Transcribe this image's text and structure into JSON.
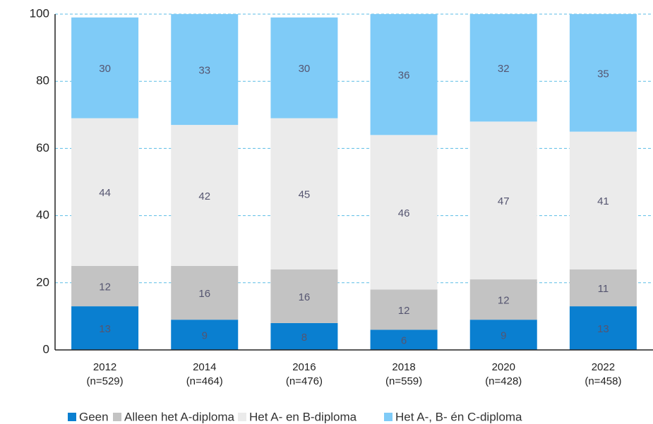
{
  "chart_data": {
    "type": "stacked_bar",
    "categories": [
      "2012",
      "2014",
      "2016",
      "2018",
      "2020",
      "2022"
    ],
    "category_sublabels": [
      "(n=529)",
      "(n=464)",
      "(n=476)",
      "(n=559)",
      "(n=428)",
      "(n=458)"
    ],
    "series": [
      {
        "name": "Geen",
        "color": "#0a7fd0",
        "values": [
          13,
          9,
          8,
          6,
          9,
          13
        ]
      },
      {
        "name": "Alleen het A-diploma",
        "color": "#c3c3c3",
        "values": [
          12,
          16,
          16,
          12,
          12,
          11
        ]
      },
      {
        "name": "Het A- en B-diploma",
        "color": "#ebebeb",
        "values": [
          44,
          42,
          45,
          46,
          47,
          41
        ]
      },
      {
        "name": "Het A-, B- én C-diploma",
        "color": "#7fcbf7",
        "values": [
          30,
          33,
          30,
          36,
          32,
          35
        ]
      }
    ],
    "ylim": [
      0,
      100
    ],
    "yticks": [
      0,
      20,
      40,
      60,
      80,
      100
    ],
    "grid": true,
    "legend": "bottom"
  }
}
